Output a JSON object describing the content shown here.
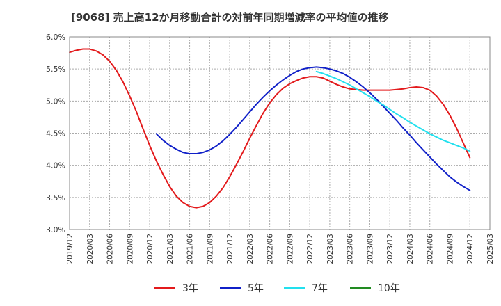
{
  "chart_data": {
    "type": "line",
    "title": "[9068]  売上高12か月移動合計の対前年同期増減率の平均値の推移",
    "xlabel": "",
    "ylabel": "",
    "ylim": [
      0.03,
      0.06
    ],
    "y_ticks": [
      "6.0%",
      "5.5%",
      "5.0%",
      "4.5%",
      "4.0%",
      "3.5%",
      "3.0%"
    ],
    "x_ticks": [
      "2019/12",
      "2020/03",
      "2020/06",
      "2020/09",
      "2020/12",
      "2021/03",
      "2021/06",
      "2021/09",
      "2021/12",
      "2022/03",
      "2022/06",
      "2022/09",
      "2022/12",
      "2023/03",
      "2023/06",
      "2023/09",
      "2023/12",
      "2024/03",
      "2024/06",
      "2024/09",
      "2024/12",
      "2025/03"
    ],
    "grid": true,
    "legend_position": "bottom",
    "series": [
      {
        "name": "3年",
        "color": "#e31a1c",
        "points": [
          [
            "2019/12",
            0.0576
          ],
          [
            "2020/01",
            0.0579
          ],
          [
            "2020/02",
            0.0581
          ],
          [
            "2020/03",
            0.0581
          ],
          [
            "2020/04",
            0.0578
          ],
          [
            "2020/05",
            0.0572
          ],
          [
            "2020/06",
            0.0562
          ],
          [
            "2020/07",
            0.0548
          ],
          [
            "2020/08",
            0.053
          ],
          [
            "2020/09",
            0.0508
          ],
          [
            "2020/10",
            0.0484
          ],
          [
            "2020/11",
            0.0457
          ],
          [
            "2020/12",
            0.0431
          ],
          [
            "2021/01",
            0.0407
          ],
          [
            "2021/02",
            0.0386
          ],
          [
            "2021/03",
            0.0367
          ],
          [
            "2021/04",
            0.0352
          ],
          [
            "2021/05",
            0.0342
          ],
          [
            "2021/06",
            0.0336
          ],
          [
            "2021/07",
            0.0334
          ],
          [
            "2021/08",
            0.0336
          ],
          [
            "2021/09",
            0.0342
          ],
          [
            "2021/10",
            0.0352
          ],
          [
            "2021/11",
            0.0365
          ],
          [
            "2021/12",
            0.0382
          ],
          [
            "2022/01",
            0.0401
          ],
          [
            "2022/02",
            0.0421
          ],
          [
            "2022/03",
            0.0442
          ],
          [
            "2022/04",
            0.0462
          ],
          [
            "2022/05",
            0.0481
          ],
          [
            "2022/06",
            0.0497
          ],
          [
            "2022/07",
            0.051
          ],
          [
            "2022/08",
            0.052
          ],
          [
            "2022/09",
            0.0527
          ],
          [
            "2022/10",
            0.0532
          ],
          [
            "2022/11",
            0.0536
          ],
          [
            "2022/12",
            0.0538
          ],
          [
            "2023/01",
            0.0538
          ],
          [
            "2023/02",
            0.0536
          ],
          [
            "2023/03",
            0.0531
          ],
          [
            "2023/04",
            0.0526
          ],
          [
            "2023/05",
            0.0522
          ],
          [
            "2023/06",
            0.0519
          ],
          [
            "2023/07",
            0.0518
          ],
          [
            "2023/08",
            0.0517
          ],
          [
            "2023/09",
            0.0517
          ],
          [
            "2023/10",
            0.0517
          ],
          [
            "2023/11",
            0.0517
          ],
          [
            "2023/12",
            0.0517
          ],
          [
            "2024/01",
            0.0518
          ],
          [
            "2024/02",
            0.0519
          ],
          [
            "2024/03",
            0.0521
          ],
          [
            "2024/04",
            0.0522
          ],
          [
            "2024/05",
            0.0521
          ],
          [
            "2024/06",
            0.0517
          ],
          [
            "2024/07",
            0.0508
          ],
          [
            "2024/08",
            0.0495
          ],
          [
            "2024/09",
            0.0478
          ],
          [
            "2024/10",
            0.0458
          ],
          [
            "2024/11",
            0.0435
          ],
          [
            "2024/12",
            0.0412
          ]
        ]
      },
      {
        "name": "5年",
        "color": "#1020c8",
        "points": [
          [
            "2021/01",
            0.0449
          ],
          [
            "2021/02",
            0.0439
          ],
          [
            "2021/03",
            0.0431
          ],
          [
            "2021/04",
            0.0425
          ],
          [
            "2021/05",
            0.042
          ],
          [
            "2021/06",
            0.0418
          ],
          [
            "2021/07",
            0.0418
          ],
          [
            "2021/08",
            0.042
          ],
          [
            "2021/09",
            0.0424
          ],
          [
            "2021/10",
            0.043
          ],
          [
            "2021/11",
            0.0438
          ],
          [
            "2021/12",
            0.0448
          ],
          [
            "2022/01",
            0.0459
          ],
          [
            "2022/02",
            0.0471
          ],
          [
            "2022/03",
            0.0483
          ],
          [
            "2022/04",
            0.0495
          ],
          [
            "2022/05",
            0.0506
          ],
          [
            "2022/06",
            0.0516
          ],
          [
            "2022/07",
            0.0525
          ],
          [
            "2022/08",
            0.0533
          ],
          [
            "2022/09",
            0.054
          ],
          [
            "2022/10",
            0.0546
          ],
          [
            "2022/11",
            0.055
          ],
          [
            "2022/12",
            0.0552
          ],
          [
            "2023/01",
            0.0553
          ],
          [
            "2023/02",
            0.0552
          ],
          [
            "2023/03",
            0.055
          ],
          [
            "2023/04",
            0.0547
          ],
          [
            "2023/05",
            0.0543
          ],
          [
            "2023/06",
            0.0537
          ],
          [
            "2023/07",
            0.053
          ],
          [
            "2023/08",
            0.0522
          ],
          [
            "2023/09",
            0.0513
          ],
          [
            "2023/10",
            0.0503
          ],
          [
            "2023/11",
            0.0492
          ],
          [
            "2023/12",
            0.0481
          ],
          [
            "2024/01",
            0.047
          ],
          [
            "2024/02",
            0.0458
          ],
          [
            "2024/03",
            0.0447
          ],
          [
            "2024/04",
            0.0435
          ],
          [
            "2024/05",
            0.0424
          ],
          [
            "2024/06",
            0.0413
          ],
          [
            "2024/07",
            0.0402
          ],
          [
            "2024/08",
            0.0392
          ],
          [
            "2024/09",
            0.0382
          ],
          [
            "2024/10",
            0.0374
          ],
          [
            "2024/11",
            0.0367
          ],
          [
            "2024/12",
            0.0361
          ]
        ]
      },
      {
        "name": "7年",
        "color": "#22e0ee",
        "points": [
          [
            "2023/01",
            0.0546
          ],
          [
            "2023/02",
            0.0543
          ],
          [
            "2023/03",
            0.0539
          ],
          [
            "2023/04",
            0.0535
          ],
          [
            "2023/05",
            0.053
          ],
          [
            "2023/06",
            0.0525
          ],
          [
            "2023/07",
            0.0519
          ],
          [
            "2023/08",
            0.0513
          ],
          [
            "2023/09",
            0.0507
          ],
          [
            "2023/10",
            0.05
          ],
          [
            "2023/11",
            0.0494
          ],
          [
            "2023/12",
            0.0487
          ],
          [
            "2024/01",
            0.048
          ],
          [
            "2024/02",
            0.0474
          ],
          [
            "2024/03",
            0.0467
          ],
          [
            "2024/04",
            0.0461
          ],
          [
            "2024/05",
            0.0455
          ],
          [
            "2024/06",
            0.0449
          ],
          [
            "2024/07",
            0.0444
          ],
          [
            "2024/08",
            0.0439
          ],
          [
            "2024/09",
            0.0435
          ],
          [
            "2024/10",
            0.0431
          ],
          [
            "2024/11",
            0.0427
          ],
          [
            "2024/12",
            0.0422
          ]
        ]
      },
      {
        "name": "10年",
        "color": "#228b22",
        "points": []
      }
    ]
  }
}
